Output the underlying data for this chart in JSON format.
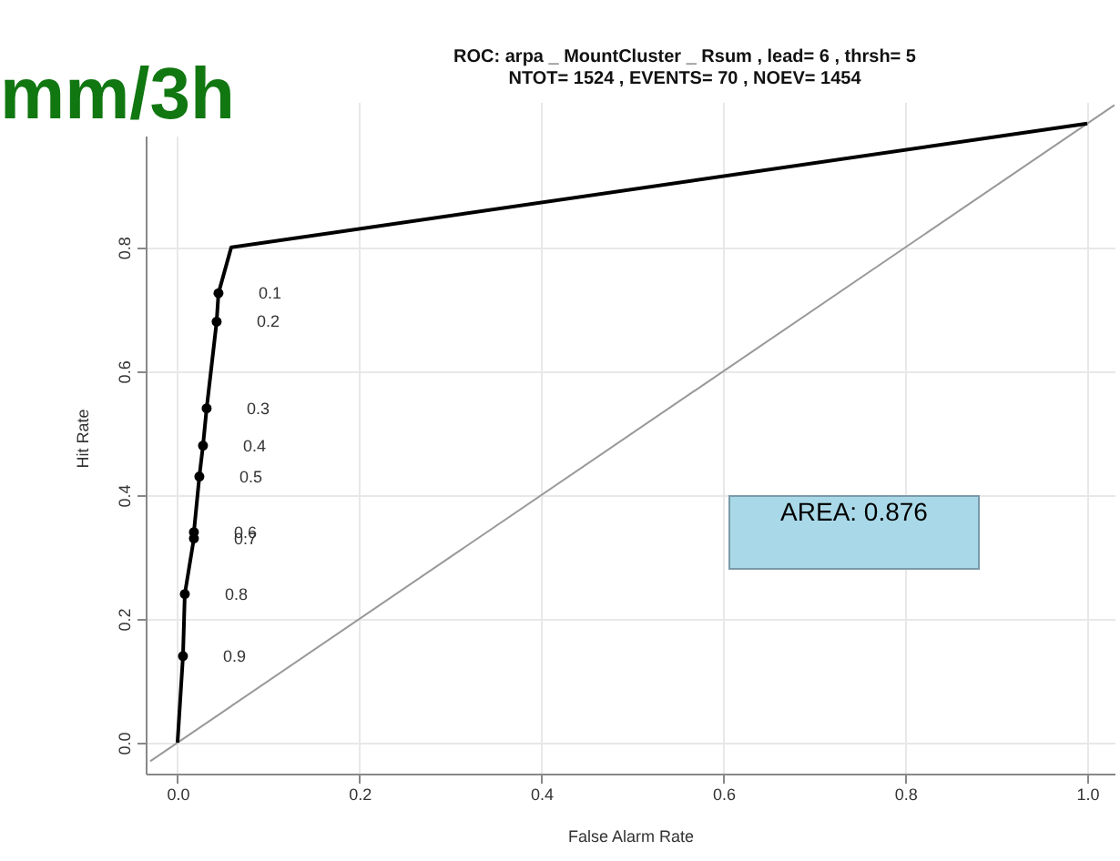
{
  "chart_data": {
    "type": "line",
    "title": "ROC:  arpa _ MountCluster _ Rsum , lead= 6 , thrsh= 5",
    "subtitle": "NTOT= 1524 , EVENTS= 70 , NOEV= 1454",
    "xlabel": "False Alarm Rate",
    "ylabel": "Hit Rate",
    "annotations": [
      "mm/3h",
      "AREA: 0.876",
      {
        "text": "0.1",
        "x": 0.045,
        "y": 0.726
      },
      {
        "text": "0.2",
        "x": 0.043,
        "y": 0.68
      },
      {
        "text": "0.3",
        "x": 0.032,
        "y": 0.54
      },
      {
        "text": "0.4",
        "x": 0.028,
        "y": 0.48
      },
      {
        "text": "0.5",
        "x": 0.024,
        "y": 0.43
      },
      {
        "text": "0.6",
        "x": 0.018,
        "y": 0.34
      },
      {
        "text": "0.7",
        "x": 0.018,
        "y": 0.33
      },
      {
        "text": "0.8",
        "x": 0.008,
        "y": 0.24
      },
      {
        "text": "0.9",
        "x": 0.006,
        "y": 0.14
      }
    ],
    "xlim": [
      -0.035,
      1.03
    ],
    "ylim": [
      -0.05,
      1.035
    ],
    "xticks": [
      {
        "value": 0,
        "label": "0.0"
      },
      {
        "value": 0.2,
        "label": "0.2"
      },
      {
        "value": 0.4,
        "label": "0.4"
      },
      {
        "value": 0.6,
        "label": "0.6"
      },
      {
        "value": 0.8,
        "label": "0.8"
      },
      {
        "value": 1,
        "label": "1.0"
      }
    ],
    "yticks": [
      {
        "value": 0,
        "label": "0.0"
      },
      {
        "value": 0.2,
        "label": "0.2"
      },
      {
        "value": 0.4,
        "label": "0.4"
      },
      {
        "value": 0.6,
        "label": "0.6"
      },
      {
        "value": 0.8,
        "label": "0.8"
      }
    ],
    "grid": true,
    "series": [
      {
        "color": "#999999",
        "x": [
          -0.03,
          1.03
        ],
        "values": [
          -0.03,
          1.03
        ],
        "marker": "none"
      },
      {
        "color": "#000000",
        "x": [
          0,
          0.006,
          0.008,
          0.018,
          0.018,
          0.024,
          0.028,
          0.032,
          0.043,
          0.045,
          0.059,
          1
        ],
        "values": [
          0,
          0.14,
          0.24,
          0.33,
          0.34,
          0.43,
          0.48,
          0.54,
          0.68,
          0.726,
          0.8,
          1
        ],
        "marker": "none"
      },
      {
        "type": "scatter",
        "color": "#000000",
        "marker": "circle",
        "x": [
          0.045,
          0.043,
          0.032,
          0.028,
          0.024,
          0.018,
          0.018,
          0.008,
          0.006
        ],
        "values": [
          0.726,
          0.68,
          0.54,
          0.48,
          0.43,
          0.34,
          0.33,
          0.24,
          0.14
        ]
      }
    ]
  }
}
